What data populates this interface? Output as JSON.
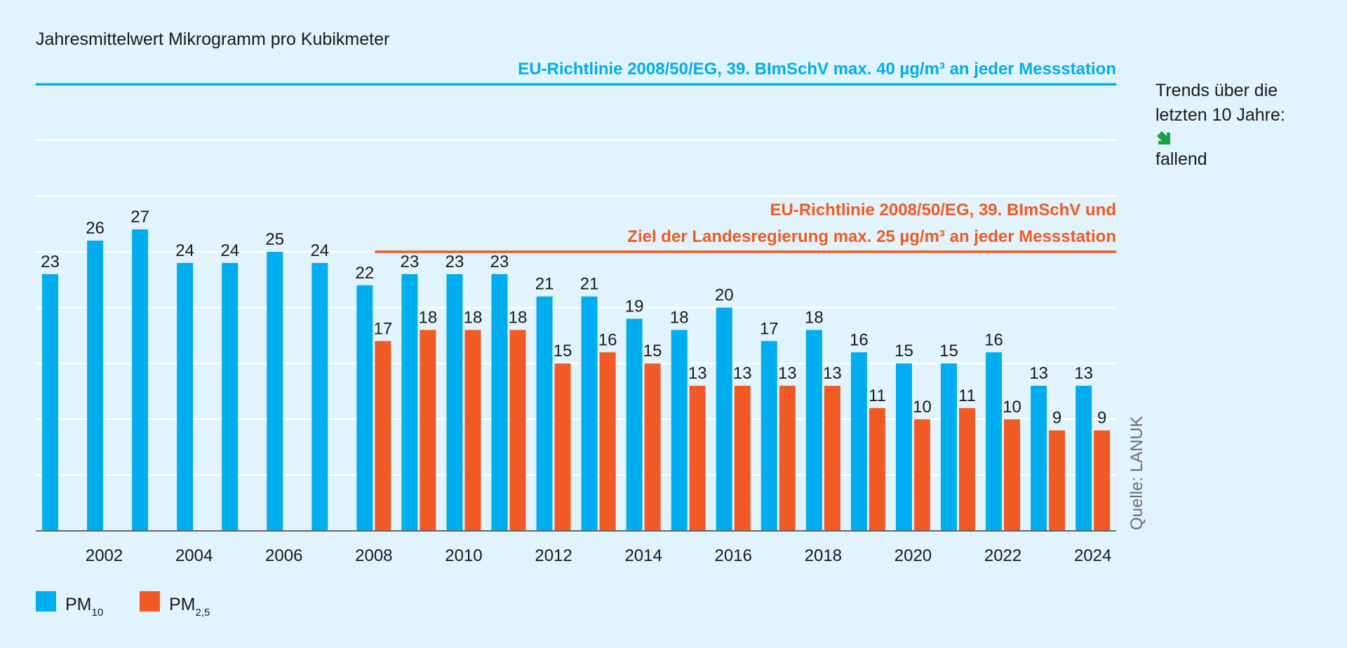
{
  "colors": {
    "pm10": "#00aeef",
    "pm25": "#f15a24",
    "background": "#e1f3fc",
    "grid": "#ffffff",
    "axis": "#666666",
    "trend_arrow": "#1aa24a"
  },
  "chart_data": {
    "type": "bar",
    "title": "Jahresmittelwert Mikrogramm pro Kubikmeter",
    "xlabel": "",
    "ylabel": "",
    "ylim": [
      0,
      40
    ],
    "grid": true,
    "legend_position": "bottom-left",
    "categories": [
      2001,
      2002,
      2003,
      2004,
      2005,
      2006,
      2007,
      2008,
      2009,
      2010,
      2011,
      2012,
      2013,
      2014,
      2015,
      2016,
      2017,
      2018,
      2019,
      2020,
      2021,
      2022,
      2023,
      2024
    ],
    "x_tick_labels": [
      "2002",
      "2004",
      "2006",
      "2008",
      "2010",
      "2012",
      "2014",
      "2016",
      "2018",
      "2020",
      "2022",
      "2024"
    ],
    "series": [
      {
        "name": "PM10",
        "legend_main": "PM",
        "legend_sub": "10",
        "color": "#00aeef",
        "values": [
          23,
          26,
          27,
          24,
          24,
          25,
          24,
          22,
          23,
          23,
          23,
          21,
          21,
          19,
          18,
          20,
          17,
          18,
          16,
          15,
          15,
          16,
          13,
          13
        ]
      },
      {
        "name": "PM2,5",
        "legend_main": "PM",
        "legend_sub": "2,5",
        "color": "#f15a24",
        "values": [
          null,
          null,
          null,
          null,
          null,
          null,
          null,
          17,
          18,
          18,
          18,
          15,
          16,
          15,
          13,
          13,
          13,
          13,
          11,
          10,
          11,
          10,
          9,
          9
        ]
      }
    ],
    "reference_lines": [
      {
        "value": 40,
        "color": "#00aeef",
        "labels": [
          "EU-Richtlinie 2008/50/EG, 39. BImSchV max. 40 µg/m³ an jeder Messstation"
        ]
      },
      {
        "value": 25,
        "color": "#f15a24",
        "from": 2008,
        "labels": [
          "EU-Richtlinie 2008/50/EG, 39. BImSchV und",
          "Ziel der Landesregierung max. 25 µg/m³ an jeder Messstation"
        ]
      }
    ],
    "source": "Quelle: LANUK"
  },
  "trend": {
    "line1": "Trends über die",
    "line2": "letzten 10 Jahre:",
    "icon": "arrow-down-right-icon",
    "label": "fallend"
  }
}
